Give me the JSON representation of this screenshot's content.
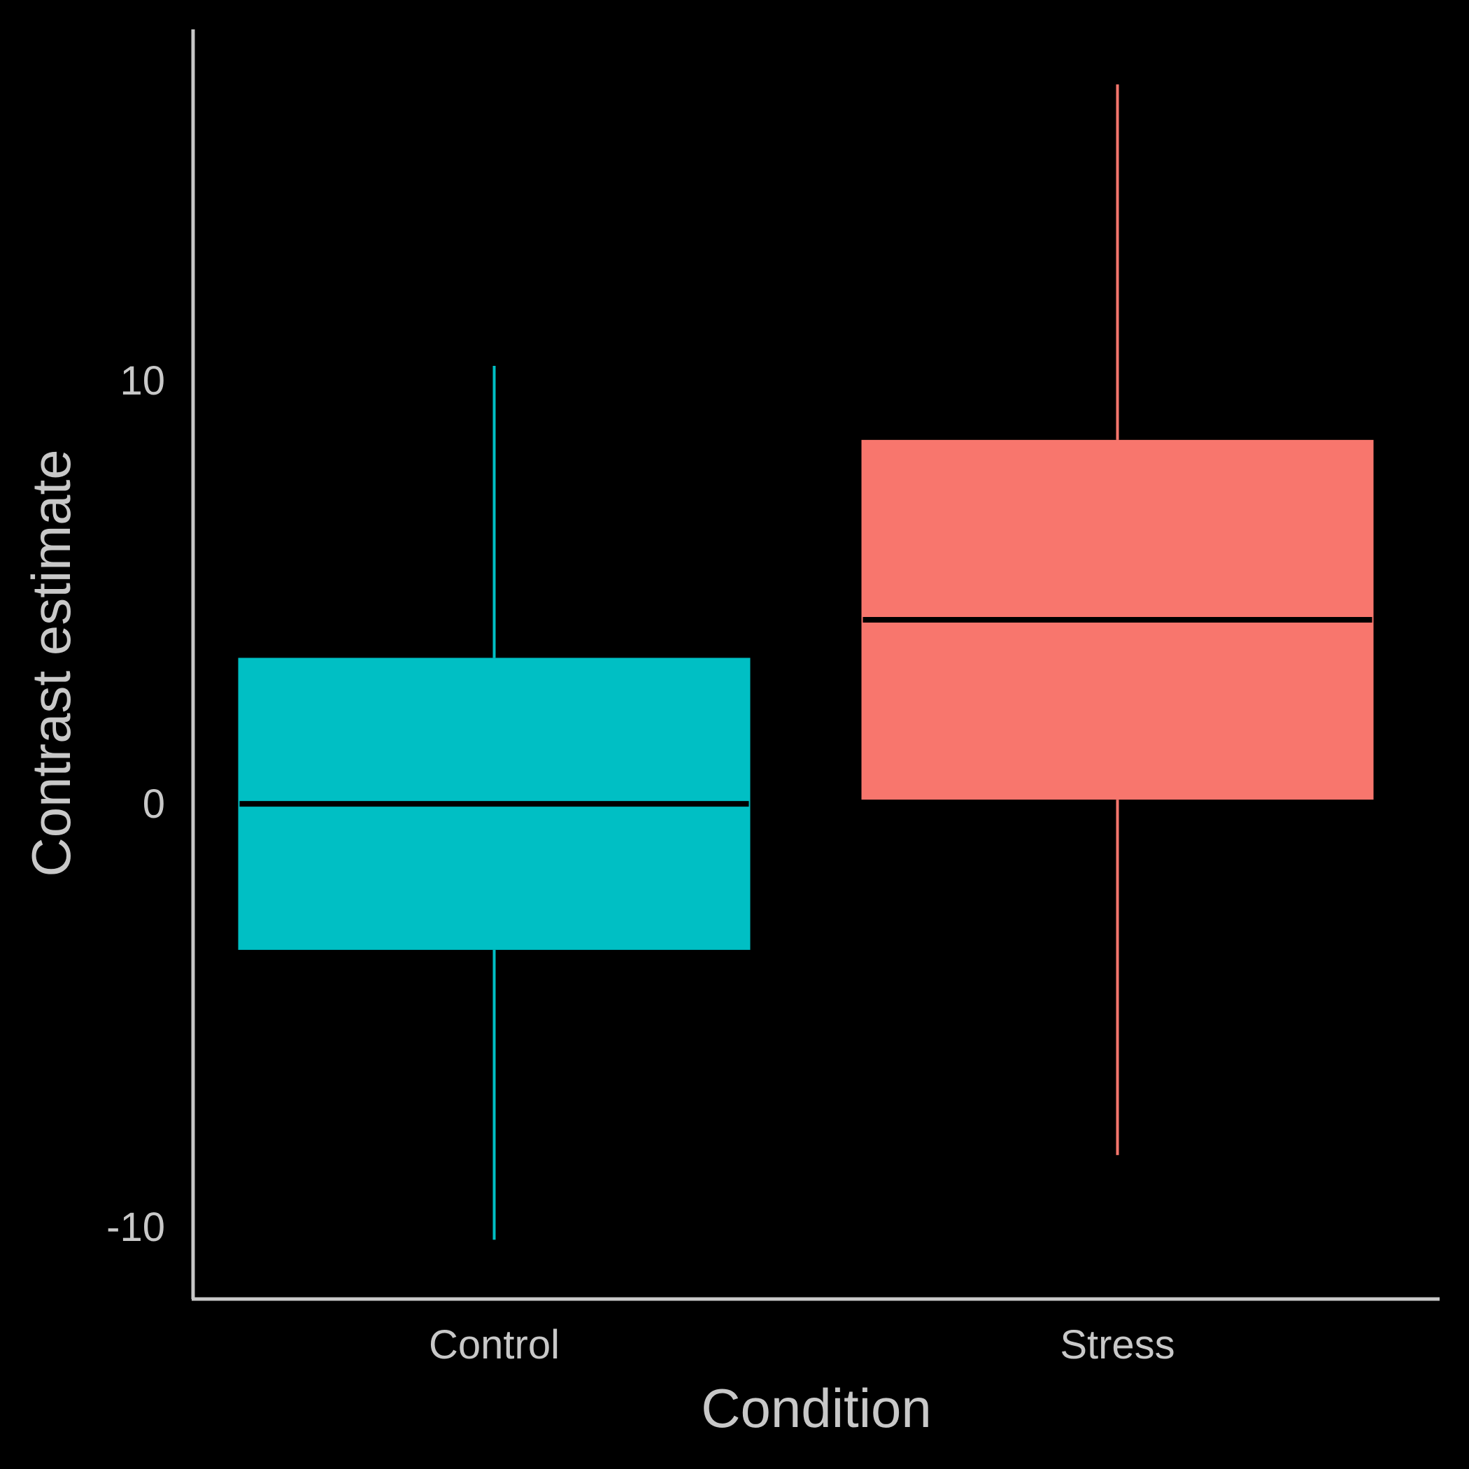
{
  "chart_data": {
    "type": "box",
    "title": "",
    "xlabel": "Condition",
    "ylabel": "Contrast estimate",
    "categories": [
      "Control",
      "Stress"
    ],
    "yticks": [
      -10,
      0,
      10
    ],
    "ytick_labels": [
      "-10",
      "0",
      "10"
    ],
    "ylim": [
      -11.7,
      18.3
    ],
    "grid": false,
    "legend": "none",
    "boxes": [
      {
        "category": "Control",
        "color": "#00BFC4",
        "whisker_low": -10.3,
        "q1": -3.45,
        "median": 0.0,
        "q3": 3.45,
        "whisker_high": 10.35
      },
      {
        "category": "Stress",
        "color": "#F8766D",
        "whisker_low": -8.3,
        "q1": 0.1,
        "median": 4.35,
        "q3": 8.6,
        "whisker_high": 17.0
      }
    ],
    "colors": {
      "background": "#000000",
      "axis": "#c8c8c8",
      "median": "#000000"
    }
  }
}
